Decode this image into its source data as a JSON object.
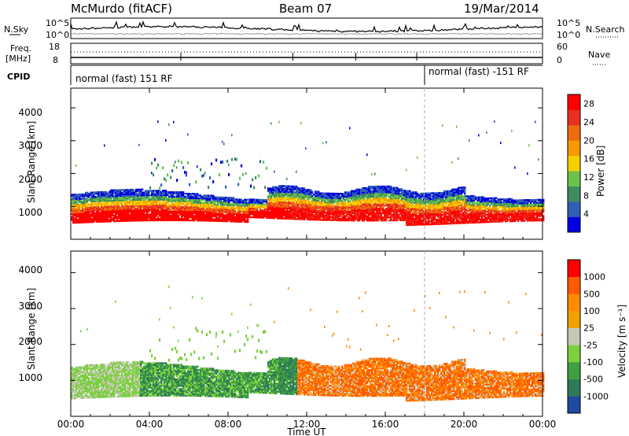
{
  "header": {
    "station": "McMurdo (fitACF)",
    "beam": "Beam 07",
    "date": "19/Mar/2014"
  },
  "noise_panel": {
    "left_label": "N.Sky",
    "right_label": "N.Search",
    "left_ticks": [
      "10^5",
      "10^0"
    ],
    "right_ticks": [
      "10^5",
      "10^0"
    ]
  },
  "freq_panel": {
    "left_label_line1": "Freq.",
    "left_label_line2": "[MHz]",
    "left_ticks": [
      "18",
      "8"
    ],
    "right_label": "Nave",
    "right_ticks": [
      "60",
      "0"
    ]
  },
  "cpid_panel": {
    "label": "CPID",
    "segments": [
      {
        "label": "normal (fast) 151 RF",
        "start_hour": 0
      },
      {
        "label": "normal (fast) -151 RF",
        "start_hour": 18
      }
    ]
  },
  "x_axis": {
    "label": "Time UT",
    "tick_labels": [
      "00:00",
      "04:00",
      "08:00",
      "12:00",
      "16:00",
      "20:00",
      "00:00"
    ],
    "range_hours": [
      0,
      24
    ]
  },
  "colors": {
    "power": [
      "#0000e0",
      "#2f5fb4",
      "#3e8c5f",
      "#6cc24a",
      "#f5d000",
      "#f59a00",
      "#f06a10",
      "#e83020",
      "#ff0000"
    ],
    "velocity": [
      "#ff0000",
      "#ff5a00",
      "#ff8a00",
      "#f0a000",
      "#c8c8b8",
      "#7cd040",
      "#40a040",
      "#2f7a5a",
      "#1f4aa0"
    ],
    "ground_scatter": "#a0a0a0"
  },
  "chart_data": [
    {
      "type": "heatmap",
      "name": "power",
      "ylabel": "Slant Range [km]",
      "yticks": [
        "1000",
        "2000",
        "3000",
        "4000"
      ],
      "ylim": [
        0,
        4600
      ],
      "xlabel": "",
      "colorbar_label": "Power [dB]",
      "colorbar_ticks": [
        "4",
        "8",
        "12",
        "16",
        "20",
        "24",
        "28"
      ],
      "colorbar_range": [
        0,
        30
      ]
    },
    {
      "type": "heatmap",
      "name": "velocity",
      "ylabel": "Slant Range [km]",
      "yticks": [
        "1000",
        "2000",
        "3000",
        "4000"
      ],
      "ylim": [
        0,
        4600
      ],
      "xlabel": "Time UT",
      "colorbar_label": "Velocity [m s⁻¹]",
      "colorbar_ticks": [
        "1000",
        "500",
        "100",
        "25",
        "-25",
        "-100",
        "-500",
        "-1000"
      ]
    }
  ]
}
